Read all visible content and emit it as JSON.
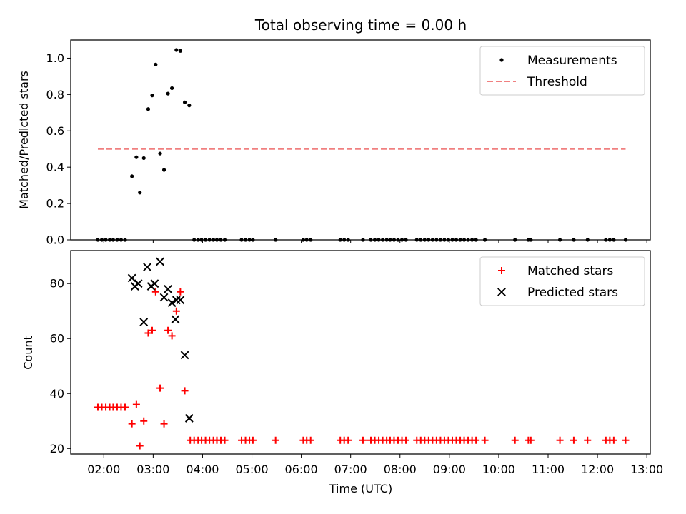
{
  "figure": {
    "title": "Total observing time = 0.00 h"
  },
  "chart_data": [
    {
      "type": "scatter",
      "panel": "top",
      "xlabel": "",
      "ylabel": "Matched/Predicted stars",
      "xlim": [
        1.33,
        13.07
      ],
      "ylim": [
        0.0,
        1.1
      ],
      "yticks": [
        {
          "value": 0.0,
          "label": "0.0"
        },
        {
          "value": 0.2,
          "label": "0.2"
        },
        {
          "value": 0.4,
          "label": "0.4"
        },
        {
          "value": 0.6,
          "label": "0.6"
        },
        {
          "value": 0.8,
          "label": "0.8"
        },
        {
          "value": 1.0,
          "label": "1.0"
        }
      ],
      "legend": {
        "placement": "top-right"
      },
      "series": [
        {
          "name": "Measurements",
          "kind": "dot",
          "color": "#000000",
          "points": [
            [
              1.88,
              0
            ],
            [
              1.96,
              0
            ],
            [
              2.04,
              0
            ],
            [
              2.12,
              0
            ],
            [
              2.19,
              0
            ],
            [
              2.27,
              0
            ],
            [
              2.35,
              0
            ],
            [
              2.43,
              0
            ],
            [
              2.57,
              0.35
            ],
            [
              2.66,
              0.455
            ],
            [
              2.73,
              0.26
            ],
            [
              2.81,
              0.45
            ],
            [
              2.9,
              0.72
            ],
            [
              2.98,
              0.795
            ],
            [
              3.05,
              0.965
            ],
            [
              3.14,
              0.475
            ],
            [
              3.22,
              0.385
            ],
            [
              3.3,
              0.805
            ],
            [
              3.38,
              0.835
            ],
            [
              3.47,
              1.045
            ],
            [
              3.55,
              1.04
            ],
            [
              3.64,
              0.757
            ],
            [
              3.73,
              0.74
            ],
            [
              3.83,
              0
            ],
            [
              3.91,
              0
            ],
            [
              3.98,
              0
            ],
            [
              4.06,
              0
            ],
            [
              4.14,
              0
            ],
            [
              4.22,
              0
            ],
            [
              4.29,
              0
            ],
            [
              4.37,
              0
            ],
            [
              4.45,
              0
            ],
            [
              4.79,
              0
            ],
            [
              4.87,
              0
            ],
            [
              4.95,
              0
            ],
            [
              5.02,
              0
            ],
            [
              5.48,
              0
            ],
            [
              6.04,
              0
            ],
            [
              6.11,
              0
            ],
            [
              6.19,
              0
            ],
            [
              6.79,
              0
            ],
            [
              6.87,
              0
            ],
            [
              6.95,
              0
            ],
            [
              7.25,
              0
            ],
            [
              7.41,
              0
            ],
            [
              7.49,
              0
            ],
            [
              7.57,
              0
            ],
            [
              7.65,
              0
            ],
            [
              7.73,
              0
            ],
            [
              7.8,
              0
            ],
            [
              7.88,
              0
            ],
            [
              7.96,
              0
            ],
            [
              8.04,
              0
            ],
            [
              8.12,
              0
            ],
            [
              8.34,
              0
            ],
            [
              8.42,
              0
            ],
            [
              8.5,
              0
            ],
            [
              8.58,
              0
            ],
            [
              8.66,
              0
            ],
            [
              8.74,
              0
            ],
            [
              8.82,
              0
            ],
            [
              8.9,
              0
            ],
            [
              8.98,
              0
            ],
            [
              9.06,
              0
            ],
            [
              9.14,
              0
            ],
            [
              9.22,
              0
            ],
            [
              9.3,
              0
            ],
            [
              9.38,
              0
            ],
            [
              9.46,
              0
            ],
            [
              9.54,
              0
            ],
            [
              9.72,
              0
            ],
            [
              10.33,
              0
            ],
            [
              10.6,
              0
            ],
            [
              10.65,
              0
            ],
            [
              11.24,
              0
            ],
            [
              11.52,
              0
            ],
            [
              11.8,
              0
            ],
            [
              12.17,
              0
            ],
            [
              12.25,
              0
            ],
            [
              12.33,
              0
            ],
            [
              12.57,
              0
            ]
          ]
        },
        {
          "name": "Threshold",
          "kind": "dashed-line",
          "color": "#f08080",
          "points": [
            [
              1.88,
              0.5
            ],
            [
              12.57,
              0.5
            ]
          ]
        }
      ]
    },
    {
      "type": "scatter",
      "panel": "bottom",
      "xlabel": "Time (UTC)",
      "ylabel": "Count",
      "xlim": [
        1.33,
        13.07
      ],
      "ylim": [
        18,
        92
      ],
      "yticks": [
        {
          "value": 20,
          "label": "20"
        },
        {
          "value": 40,
          "label": "40"
        },
        {
          "value": 60,
          "label": "60"
        },
        {
          "value": 80,
          "label": "80"
        }
      ],
      "xticks": [
        {
          "value": 2,
          "label": "02:00"
        },
        {
          "value": 3,
          "label": "03:00"
        },
        {
          "value": 4,
          "label": "04:00"
        },
        {
          "value": 5,
          "label": "05:00"
        },
        {
          "value": 6,
          "label": "06:00"
        },
        {
          "value": 7,
          "label": "07:00"
        },
        {
          "value": 8,
          "label": "08:00"
        },
        {
          "value": 9,
          "label": "09:00"
        },
        {
          "value": 10,
          "label": "10:00"
        },
        {
          "value": 11,
          "label": "11:00"
        },
        {
          "value": 12,
          "label": "12:00"
        },
        {
          "value": 13,
          "label": "13:00"
        }
      ],
      "legend": {
        "placement": "top-right"
      },
      "series": [
        {
          "name": "Matched stars",
          "kind": "plus",
          "color": "#ff0000",
          "points": [
            [
              1.88,
              35
            ],
            [
              1.96,
              35
            ],
            [
              2.04,
              35
            ],
            [
              2.12,
              35
            ],
            [
              2.19,
              35
            ],
            [
              2.27,
              35
            ],
            [
              2.35,
              35
            ],
            [
              2.43,
              35
            ],
            [
              2.57,
              29
            ],
            [
              2.66,
              36
            ],
            [
              2.73,
              21
            ],
            [
              2.81,
              30
            ],
            [
              2.9,
              62
            ],
            [
              2.98,
              63
            ],
            [
              3.05,
              77
            ],
            [
              3.14,
              42
            ],
            [
              3.22,
              29
            ],
            [
              3.3,
              63
            ],
            [
              3.38,
              61
            ],
            [
              3.47,
              70
            ],
            [
              3.55,
              77
            ],
            [
              3.64,
              41
            ],
            [
              3.75,
              23
            ],
            [
              3.83,
              23
            ],
            [
              3.91,
              23
            ],
            [
              3.98,
              23
            ],
            [
              4.06,
              23
            ],
            [
              4.14,
              23
            ],
            [
              4.22,
              23
            ],
            [
              4.29,
              23
            ],
            [
              4.37,
              23
            ],
            [
              4.45,
              23
            ],
            [
              4.79,
              23
            ],
            [
              4.87,
              23
            ],
            [
              4.95,
              23
            ],
            [
              5.02,
              23
            ],
            [
              5.48,
              23
            ],
            [
              6.04,
              23
            ],
            [
              6.11,
              23
            ],
            [
              6.19,
              23
            ],
            [
              6.79,
              23
            ],
            [
              6.87,
              23
            ],
            [
              6.95,
              23
            ],
            [
              7.25,
              23
            ],
            [
              7.41,
              23
            ],
            [
              7.49,
              23
            ],
            [
              7.57,
              23
            ],
            [
              7.65,
              23
            ],
            [
              7.73,
              23
            ],
            [
              7.8,
              23
            ],
            [
              7.88,
              23
            ],
            [
              7.96,
              23
            ],
            [
              8.04,
              23
            ],
            [
              8.12,
              23
            ],
            [
              8.34,
              23
            ],
            [
              8.42,
              23
            ],
            [
              8.5,
              23
            ],
            [
              8.58,
              23
            ],
            [
              8.66,
              23
            ],
            [
              8.74,
              23
            ],
            [
              8.82,
              23
            ],
            [
              8.9,
              23
            ],
            [
              8.98,
              23
            ],
            [
              9.06,
              23
            ],
            [
              9.14,
              23
            ],
            [
              9.22,
              23
            ],
            [
              9.3,
              23
            ],
            [
              9.38,
              23
            ],
            [
              9.46,
              23
            ],
            [
              9.54,
              23
            ],
            [
              9.72,
              23
            ],
            [
              10.33,
              23
            ],
            [
              10.6,
              23
            ],
            [
              10.65,
              23
            ],
            [
              11.24,
              23
            ],
            [
              11.52,
              23
            ],
            [
              11.8,
              23
            ],
            [
              12.17,
              23
            ],
            [
              12.25,
              23
            ],
            [
              12.33,
              23
            ],
            [
              12.57,
              23
            ]
          ]
        },
        {
          "name": "Predicted stars",
          "kind": "x",
          "color": "#000000",
          "points": [
            [
              2.57,
              82
            ],
            [
              2.63,
              79
            ],
            [
              2.7,
              80
            ],
            [
              2.81,
              66
            ],
            [
              2.88,
              86
            ],
            [
              2.96,
              79
            ],
            [
              3.03,
              80
            ],
            [
              3.14,
              88
            ],
            [
              3.22,
              75
            ],
            [
              3.3,
              78
            ],
            [
              3.38,
              73
            ],
            [
              3.45,
              67
            ],
            [
              3.47,
              74
            ],
            [
              3.55,
              74
            ],
            [
              3.64,
              54
            ],
            [
              3.73,
              31
            ]
          ]
        }
      ]
    }
  ]
}
